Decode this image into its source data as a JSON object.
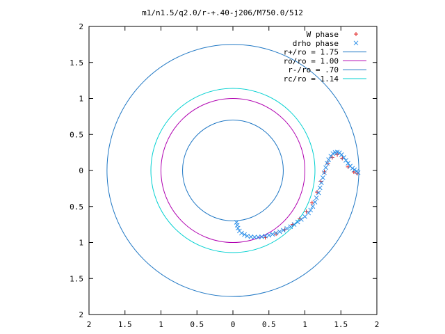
{
  "chart_data": {
    "type": "scatter",
    "title": "m1/n1.5/q2.0/r-+.40-j206/M750.0/512",
    "xlabel": "",
    "ylabel": "",
    "xlim": [
      -2,
      2
    ],
    "ylim": [
      -2,
      2
    ],
    "x_tick_values": [
      -2,
      -1.5,
      -1,
      -0.5,
      0,
      0.5,
      1,
      1.5,
      2
    ],
    "x_tick_labels": [
      "2",
      "1.5",
      "1",
      "0.5",
      "0",
      "0.5",
      "1",
      "1.5",
      "2"
    ],
    "y_tick_values": [
      2,
      1.5,
      1,
      0.5,
      0,
      -0.5,
      -1,
      -1.5,
      -2
    ],
    "y_tick_labels": [
      "2",
      "1.5",
      "1",
      "0.5",
      "0",
      "0.5",
      "1",
      "1.5",
      "2"
    ],
    "grid": false,
    "legend_position": "top-right",
    "circles": [
      {
        "name": "r+/ro = 1.75",
        "radius": 1.75,
        "color": "#1f77c4"
      },
      {
        "name": "ro/ro = 1.00",
        "radius": 1.0,
        "color": "#b000b0"
      },
      {
        "name": "r-/ro = .70",
        "radius": 0.7,
        "color": "#1f77c4"
      },
      {
        "name": "rc/ro = 1.14",
        "radius": 1.14,
        "color": "#00d0d0"
      }
    ],
    "series": [
      {
        "name": "W phase",
        "marker": "plus",
        "color": "#e02020",
        "points": [
          [
            0.45,
            -0.93
          ],
          [
            0.6,
            -0.88
          ],
          [
            0.72,
            -0.82
          ],
          [
            0.83,
            -0.75
          ],
          [
            0.93,
            -0.67
          ],
          [
            1.02,
            -0.57
          ],
          [
            1.1,
            -0.45
          ],
          [
            1.17,
            -0.3
          ],
          [
            1.22,
            -0.15
          ],
          [
            1.27,
            -0.02
          ],
          [
            1.32,
            0.1
          ],
          [
            1.38,
            0.18
          ],
          [
            1.45,
            0.22
          ],
          [
            1.52,
            0.17
          ],
          [
            1.6,
            0.05
          ],
          [
            1.68,
            -0.02
          ],
          [
            1.73,
            -0.04
          ]
        ]
      },
      {
        "name": "drho phase",
        "marker": "cross",
        "color": "#2a8ee8",
        "points": [
          [
            0.05,
            -0.72
          ],
          [
            0.06,
            -0.76
          ],
          [
            0.07,
            -0.8
          ],
          [
            0.09,
            -0.84
          ],
          [
            0.12,
            -0.87
          ],
          [
            0.16,
            -0.89
          ],
          [
            0.2,
            -0.91
          ],
          [
            0.25,
            -0.92
          ],
          [
            0.3,
            -0.925
          ],
          [
            0.35,
            -0.925
          ],
          [
            0.4,
            -0.92
          ],
          [
            0.45,
            -0.91
          ],
          [
            0.5,
            -0.9
          ],
          [
            0.55,
            -0.885
          ],
          [
            0.6,
            -0.87
          ],
          [
            0.65,
            -0.85
          ],
          [
            0.7,
            -0.83
          ],
          [
            0.75,
            -0.805
          ],
          [
            0.8,
            -0.78
          ],
          [
            0.85,
            -0.75
          ],
          [
            0.9,
            -0.715
          ],
          [
            0.95,
            -0.68
          ],
          [
            1.0,
            -0.64
          ],
          [
            1.05,
            -0.59
          ],
          [
            1.08,
            -0.55
          ],
          [
            1.11,
            -0.5
          ],
          [
            1.14,
            -0.44
          ],
          [
            1.16,
            -0.38
          ],
          [
            1.19,
            -0.31
          ],
          [
            1.21,
            -0.24
          ],
          [
            1.23,
            -0.17
          ],
          [
            1.25,
            -0.1
          ],
          [
            1.27,
            -0.03
          ],
          [
            1.29,
            0.04
          ],
          [
            1.31,
            0.1
          ],
          [
            1.33,
            0.15
          ],
          [
            1.36,
            0.2
          ],
          [
            1.39,
            0.235
          ],
          [
            1.42,
            0.25
          ],
          [
            1.45,
            0.255
          ],
          [
            1.48,
            0.245
          ],
          [
            1.51,
            0.22
          ],
          [
            1.54,
            0.18
          ],
          [
            1.57,
            0.14
          ],
          [
            1.6,
            0.1
          ],
          [
            1.63,
            0.06
          ],
          [
            1.66,
            0.03
          ],
          [
            1.69,
            0.01
          ],
          [
            1.72,
            -0.01
          ],
          [
            1.74,
            -0.03
          ]
        ]
      }
    ]
  }
}
